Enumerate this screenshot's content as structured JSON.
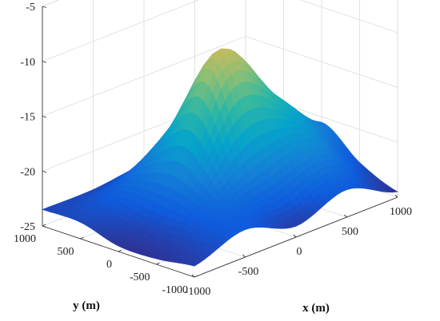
{
  "chart_data": {
    "type": "surface3d",
    "xlabel": "x (m)",
    "ylabel": "y (m)",
    "zlabel": "",
    "xlim": [
      -1000,
      1000
    ],
    "ylim": [
      -1000,
      1000
    ],
    "zlim": [
      -25,
      -5
    ],
    "x_ticks": [
      -1000,
      -500,
      0,
      500,
      1000
    ],
    "y_ticks": [
      -1000,
      -500,
      0,
      500,
      1000
    ],
    "z_ticks": [
      -25,
      -20,
      -15,
      -10,
      -5
    ],
    "x_tick_labels": [
      "-1000",
      "-500",
      "0",
      "500",
      "1000"
    ],
    "y_tick_labels": [
      "-1000",
      "-500",
      "0",
      "500",
      "1000"
    ],
    "z_tick_labels": [
      "-25",
      "-20",
      "-15",
      "-10",
      "-5"
    ],
    "grid": true,
    "colormap": "parula",
    "colormap_stops": [
      "#352a87",
      "#0f5cdd",
      "#1481d6",
      "#06a4ca",
      "#2eb7a4",
      "#87bf77",
      "#d1bb59",
      "#fec832",
      "#f9fb0e"
    ],
    "surface": {
      "x": [
        -1000,
        -500,
        0,
        500,
        1000
      ],
      "y": [
        -1000,
        -500,
        0,
        500,
        1000
      ],
      "z": [
        [
          -24.0,
          -22.5,
          -24.0,
          -22.5,
          -24.5
        ],
        [
          -24.5,
          -22.0,
          -19.5,
          -19.0,
          -23.0
        ],
        [
          -24.5,
          -21.0,
          -10.5,
          -16.0,
          -20.5
        ],
        [
          -23.5,
          -21.5,
          -17.5,
          -20.0,
          -23.0
        ],
        [
          -23.5,
          -23.5,
          -23.0,
          -23.5,
          -24.5
        ]
      ]
    }
  }
}
